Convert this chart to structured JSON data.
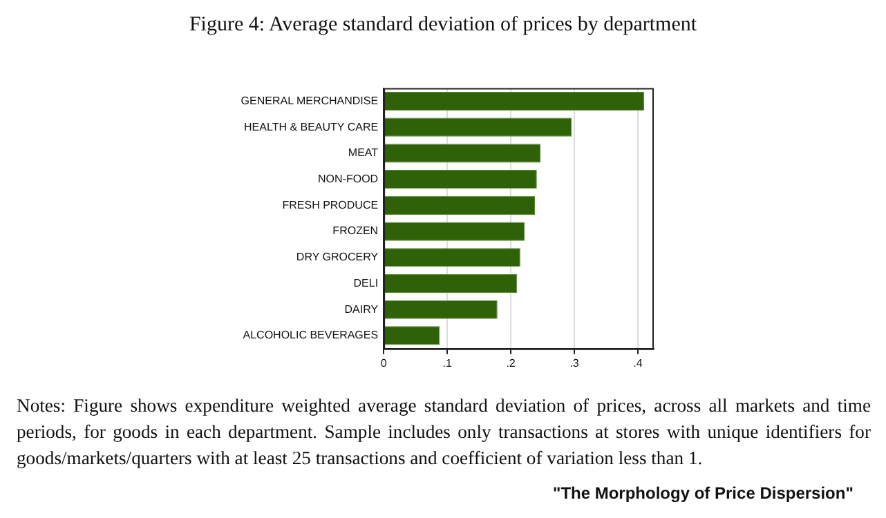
{
  "chart_data": {
    "type": "bar",
    "orientation": "horizontal",
    "title": "Figure 4: Average standard deviation of prices by department",
    "categories": [
      "GENERAL MERCHANDISE",
      "HEALTH & BEAUTY CARE",
      "MEAT",
      "NON-FOOD",
      "FRESH PRODUCE",
      "FROZEN",
      "DRY GROCERY",
      "DELI",
      "DAIRY",
      "ALCOHOLIC BEVERAGES"
    ],
    "values": [
      0.41,
      0.296,
      0.247,
      0.241,
      0.238,
      0.222,
      0.215,
      0.21,
      0.179,
      0.088
    ],
    "color": "#2e6108",
    "xlim": [
      0,
      0.425
    ],
    "xticks": [
      {
        "value": 0,
        "label": "0"
      },
      {
        "value": 0.1,
        "label": ".1"
      },
      {
        "value": 0.2,
        "label": ".2"
      },
      {
        "value": 0.3,
        "label": ".3"
      },
      {
        "value": 0.4,
        "label": ".4"
      }
    ],
    "grid": "x",
    "legend": false,
    "annotations": [
      "Notes: Figure shows expenditure weighted average standard deviation of prices, across all markets and time periods, for goods in each department.  Sample includes only transactions at stores with unique identifiers for goods/markets/quarters with at least 25 transactions and coefficient of variation less than 1.",
      "\"The Morphology of Price Dispersion\""
    ]
  }
}
